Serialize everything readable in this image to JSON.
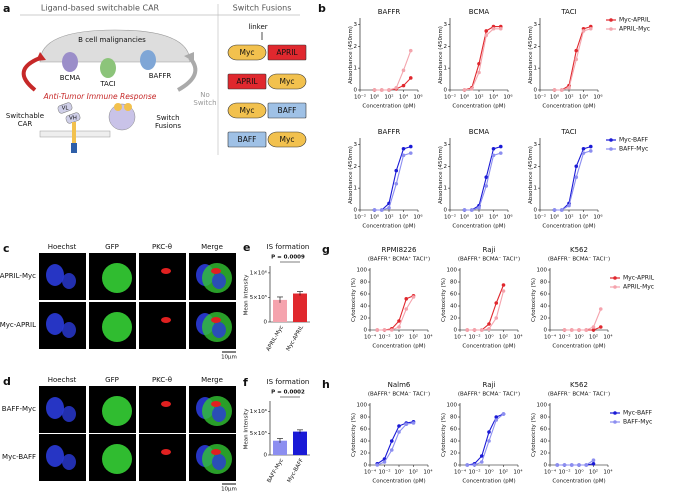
{
  "panel_a": {
    "letter": "a",
    "title_left": "Ligand-based switchable CAR",
    "title_right": "Switch Fusions",
    "tumor": "B cell malignancies",
    "receptors": [
      "BCMA",
      "TACI",
      "BAFFR"
    ],
    "response": "Anti-Tumor Immune Response",
    "no_switch": [
      "No",
      "Switch"
    ],
    "car": [
      "Switchable",
      "CAR"
    ],
    "fusions_label": [
      "Switch",
      "Fusions"
    ],
    "vl": "VL",
    "vh": "VH",
    "linker": "linker",
    "switches": [
      [
        "Myc",
        "APRIL"
      ],
      [
        "APRIL",
        "Myc"
      ],
      [
        "Myc",
        "BAFF"
      ],
      [
        "BAFF",
        "Myc"
      ]
    ]
  },
  "panel_b": {
    "letter": "b",
    "xlabel": "Concentration (pM)",
    "ylabel": "Absorbance (450nm)",
    "xscale": "log",
    "xlim": [
      0.01,
      1000000
    ],
    "xticks": [
      {
        "value": 0.01,
        "label": "10⁻²"
      },
      {
        "value": 1,
        "label": "10⁰"
      },
      {
        "value": 100,
        "label": "10²"
      },
      {
        "value": 10000,
        "label": "10⁴"
      },
      {
        "value": 1000000,
        "label": "10⁶"
      }
    ],
    "ylim": [
      0,
      3.2
    ],
    "yticks": [
      0,
      1,
      2,
      3
    ],
    "rows": [
      {
        "series": [
          {
            "name": "Myc-APRIL",
            "color": "#e0282e"
          },
          {
            "name": "APRIL-Myc",
            "color": "#f3a5ad"
          }
        ],
        "charts": [
          {
            "title": "BAFFR",
            "x": [
              1,
              10,
              100,
              1000,
              10000,
              100000
            ],
            "series_values": [
              [
                0,
                0,
                0,
                0.05,
                0.2,
                0.55
              ],
              [
                0,
                0,
                0,
                0.1,
                0.9,
                1.8
              ]
            ]
          },
          {
            "title": "BCMA",
            "x": [
              1,
              10,
              100,
              1000,
              10000,
              100000
            ],
            "series_values": [
              [
                0,
                0.1,
                1.2,
                2.7,
                2.9,
                2.9
              ],
              [
                0,
                0.05,
                0.8,
                2.5,
                2.8,
                2.8
              ]
            ]
          },
          {
            "title": "TACI",
            "x": [
              1,
              10,
              100,
              1000,
              10000,
              100000
            ],
            "series_values": [
              [
                0,
                0,
                0.2,
                1.8,
                2.8,
                2.9
              ],
              [
                0,
                0,
                0.1,
                1.4,
                2.7,
                2.8
              ]
            ]
          }
        ]
      },
      {
        "series": [
          {
            "name": "Myc-BAFF",
            "color": "#1a1ad6"
          },
          {
            "name": "BAFF-Myc",
            "color": "#8c8ef0"
          }
        ],
        "charts": [
          {
            "title": "BAFFR",
            "x": [
              1,
              10,
              100,
              1000,
              10000,
              100000
            ],
            "series_values": [
              [
                0,
                0,
                0.3,
                1.8,
                2.8,
                2.9
              ],
              [
                0,
                0,
                0.1,
                1.2,
                2.5,
                2.6
              ]
            ]
          },
          {
            "title": "BCMA",
            "x": [
              1,
              10,
              100,
              1000,
              10000,
              100000
            ],
            "series_values": [
              [
                0,
                0,
                0.2,
                1.5,
                2.8,
                2.9
              ],
              [
                0,
                0,
                0.1,
                1.1,
                2.5,
                2.6
              ]
            ]
          },
          {
            "title": "TACI",
            "x": [
              1,
              10,
              100,
              1000,
              10000,
              100000
            ],
            "series_values": [
              [
                0,
                0,
                0.3,
                2.0,
                2.8,
                2.9
              ],
              [
                0,
                0,
                0.2,
                1.5,
                2.6,
                2.7
              ]
            ]
          }
        ]
      }
    ]
  },
  "panel_c": {
    "letter": "c",
    "columns": [
      "Hoechst",
      "GFP",
      "PKC-θ",
      "Merge"
    ],
    "rows": [
      "APRIL-Myc",
      "Myc-APRIL"
    ],
    "scale": "10μm"
  },
  "panel_d": {
    "letter": "d",
    "columns": [
      "Hoechst",
      "GFP",
      "PKC-θ",
      "Merge"
    ],
    "rows": [
      "BAFF-Myc",
      "Myc-BAFF"
    ],
    "scale": "10μm"
  },
  "panel_e": {
    "letter": "e",
    "title": "IS formation",
    "p_value": "P = 0.0009",
    "ylabel": "Mean Intensity",
    "categories": [
      "APRIL-Myc",
      "Myc-APRIL"
    ],
    "values": [
      450000,
      580000
    ],
    "errors": [
      60000,
      40000
    ],
    "colors": [
      "#f5a3ad",
      "#e0282e"
    ],
    "ylim": [
      0,
      1100000
    ],
    "yticks": [
      0,
      {
        "value": 500000,
        "label": "5×10⁵"
      },
      {
        "value": 1000000,
        "label": "1×10⁶"
      }
    ]
  },
  "panel_f": {
    "letter": "f",
    "title": "IS formation",
    "p_value": "P = 0.0002",
    "ylabel": "Mean Intensity",
    "categories": [
      "BAFF-Myc",
      "Myc-BAFF"
    ],
    "values": [
      330000,
      540000
    ],
    "errors": [
      50000,
      40000
    ],
    "colors": [
      "#8c8ef0",
      "#1a1ad6"
    ],
    "ylim": [
      0,
      1200000
    ],
    "yticks": [
      0,
      {
        "value": 500000,
        "label": "5×10⁵"
      },
      {
        "value": 1000000,
        "label": "1×10⁶"
      }
    ]
  },
  "panel_g": {
    "letter": "g",
    "xlabel": "Concentration (pM)",
    "ylabel": "Cytotoxicity (%)",
    "xscale": "log",
    "xlim": [
      0.0001,
      10000
    ],
    "xticks": [
      {
        "value": 0.0001,
        "label": "10⁻⁴"
      },
      {
        "value": 0.01,
        "label": "10⁻²"
      },
      {
        "value": 1,
        "label": "10⁰"
      },
      {
        "value": 100,
        "label": "10²"
      },
      {
        "value": 10000,
        "label": "10⁴"
      }
    ],
    "ylim": [
      0,
      100
    ],
    "yticks": [
      0,
      20,
      40,
      60,
      80,
      100
    ],
    "series": [
      {
        "name": "Myc-APRIL",
        "color": "#e0282e"
      },
      {
        "name": "APRIL-Myc",
        "color": "#f5a3ad"
      }
    ],
    "charts": [
      {
        "title": "RPMI8226",
        "subtitle": "(BAFFR⁺ BCMA⁺ TACI⁺)",
        "x": [
          0.001,
          0.01,
          0.1,
          1,
          10,
          100
        ],
        "series_values": [
          [
            0,
            0,
            2,
            15,
            52,
            57
          ],
          [
            0,
            0,
            0,
            5,
            35,
            55
          ]
        ]
      },
      {
        "title": "Raji",
        "subtitle": "(BAFFR⁺ BCMA⁻ TACI⁺)",
        "x": [
          0.001,
          0.01,
          0.1,
          1,
          10,
          100
        ],
        "series_values": [
          [
            0,
            0,
            0,
            10,
            45,
            75
          ],
          [
            0,
            0,
            0,
            2,
            20,
            65
          ]
        ]
      },
      {
        "title": "K562",
        "subtitle": "(BAFFR⁻ BCMA⁻ TACI⁻)",
        "x": [
          0.01,
          0.1,
          1,
          10,
          100,
          1000
        ],
        "series_values": [
          [
            0,
            0,
            0,
            0,
            0,
            5
          ],
          [
            0,
            0,
            0,
            0,
            5,
            35
          ]
        ]
      }
    ]
  },
  "panel_h": {
    "letter": "h",
    "xlabel": "Concentration (pM)",
    "ylabel": "Cytotoxicity (%)",
    "xscale": "log",
    "xlim": [
      0.0001,
      10000
    ],
    "xticks": [
      {
        "value": 0.0001,
        "label": "10⁻⁴"
      },
      {
        "value": 0.01,
        "label": "10⁻²"
      },
      {
        "value": 1,
        "label": "10⁰"
      },
      {
        "value": 100,
        "label": "10²"
      },
      {
        "value": 10000,
        "label": "10⁴"
      }
    ],
    "ylim": [
      0,
      100
    ],
    "yticks": [
      0,
      20,
      40,
      60,
      80,
      100
    ],
    "series": [
      {
        "name": "Myc-BAFF",
        "color": "#1a1ad6"
      },
      {
        "name": "BAFF-Myc",
        "color": "#8c8ef0"
      }
    ],
    "charts": [
      {
        "title": "Nalm6",
        "subtitle": "(BAFFR⁺ BCMA⁻ TACI⁻)",
        "x": [
          0.001,
          0.01,
          0.1,
          1,
          10,
          100
        ],
        "series_values": [
          [
            2,
            10,
            40,
            65,
            70,
            72
          ],
          [
            0,
            5,
            25,
            55,
            68,
            70
          ]
        ]
      },
      {
        "title": "Raji",
        "subtitle": "(BAFFR⁺ BCMA⁻ TACI⁺)",
        "x": [
          0.001,
          0.01,
          0.1,
          1,
          10,
          100
        ],
        "series_values": [
          [
            0,
            2,
            15,
            55,
            80,
            85
          ],
          [
            0,
            0,
            5,
            40,
            75,
            85
          ]
        ]
      },
      {
        "title": "K562",
        "subtitle": "(BAFFR⁻ BCMA⁻ TACI⁻)",
        "x": [
          0.001,
          0.01,
          0.1,
          1,
          10,
          100
        ],
        "series_values": [
          [
            0,
            0,
            0,
            0,
            0,
            2
          ],
          [
            0,
            0,
            0,
            0,
            0,
            8
          ]
        ]
      }
    ]
  }
}
